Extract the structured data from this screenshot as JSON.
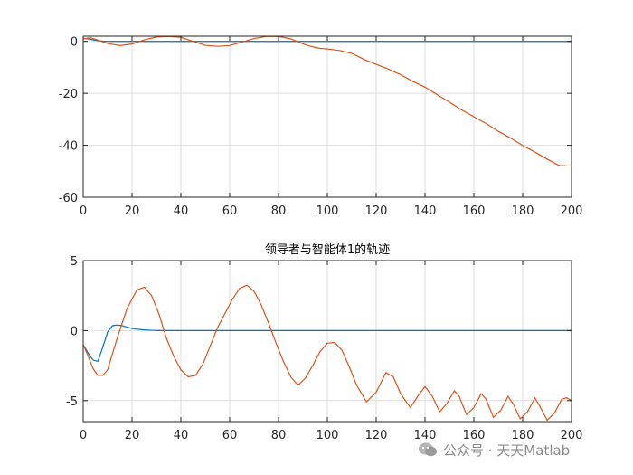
{
  "chart_data": [
    {
      "type": "line",
      "title": "",
      "xlim": [
        0,
        200
      ],
      "ylim": [
        -60,
        2
      ],
      "xticks": [
        0,
        20,
        40,
        60,
        80,
        100,
        120,
        140,
        160,
        180,
        200
      ],
      "yticks": [
        -60,
        -40,
        -20,
        0
      ],
      "grid": true,
      "series": [
        {
          "color": "#0072BD",
          "x": [
            0,
            2,
            4,
            6,
            8,
            10,
            15,
            20,
            30,
            200
          ],
          "y": [
            1.2,
            1.0,
            0.6,
            0.3,
            0.1,
            0,
            0,
            0,
            0,
            0
          ]
        },
        {
          "color": "#D95319",
          "x": [
            0,
            3,
            6,
            10,
            15,
            20,
            25,
            30,
            35,
            40,
            45,
            50,
            55,
            60,
            65,
            70,
            75,
            80,
            85,
            88,
            91,
            94,
            97,
            100,
            105,
            110,
            115,
            120,
            125,
            130,
            135,
            140,
            145,
            150,
            155,
            160,
            165,
            170,
            175,
            180,
            185,
            190,
            195,
            200
          ],
          "y": [
            1.0,
            1.4,
            0.5,
            -0.8,
            -1.6,
            -1.0,
            0.6,
            1.7,
            1.9,
            1.6,
            0,
            -1.5,
            -1.9,
            -1.6,
            -0.3,
            1.1,
            1.9,
            1.9,
            1.0,
            -0.2,
            -1.3,
            -2.1,
            -2.7,
            -2.9,
            -3.5,
            -4.6,
            -6.9,
            -8.8,
            -10.7,
            -12.8,
            -15.4,
            -17.6,
            -20.5,
            -23.4,
            -26.4,
            -29.0,
            -31.6,
            -34.6,
            -37.2,
            -40.1,
            -42.6,
            -45.3,
            -47.8,
            -48.0
          ]
        }
      ]
    },
    {
      "type": "line",
      "title": "领导者与智能体1的轨迹",
      "xlim": [
        0,
        200
      ],
      "ylim": [
        -6.5,
        5
      ],
      "xticks": [
        0,
        20,
        40,
        60,
        80,
        100,
        120,
        140,
        160,
        180,
        200
      ],
      "yticks": [
        -5,
        0,
        5
      ],
      "grid": true,
      "series": [
        {
          "color": "#0072BD",
          "x": [
            0,
            2,
            4,
            6,
            8,
            10,
            12,
            14,
            16,
            18,
            20,
            22,
            25,
            28,
            32,
            36,
            200
          ],
          "y": [
            -1.0,
            -1.6,
            -2.1,
            -2.2,
            -1.2,
            -0.1,
            0.35,
            0.4,
            0.35,
            0.25,
            0.15,
            0.1,
            0.05,
            0.02,
            0,
            0,
            0
          ]
        },
        {
          "color": "#D95319",
          "x": [
            0,
            2,
            4,
            6,
            8,
            10,
            14,
            18,
            22,
            25,
            28,
            31,
            34,
            37,
            40,
            43,
            46,
            49,
            52,
            55,
            58,
            61,
            64,
            67,
            70,
            73,
            76,
            79,
            82,
            85,
            88,
            91,
            94,
            97,
            100,
            103,
            106,
            109,
            112,
            116,
            120,
            124,
            127,
            130,
            134,
            137,
            140,
            143,
            146,
            149,
            152,
            154,
            157,
            160,
            163,
            165,
            168,
            171,
            174,
            176,
            179,
            182,
            185,
            187,
            190,
            193,
            196,
            198,
            200
          ],
          "y": [
            -1.0,
            -1.8,
            -2.7,
            -3.2,
            -3.2,
            -2.8,
            -0.5,
            1.6,
            2.9,
            3.1,
            2.5,
            1.2,
            -0.5,
            -1.8,
            -2.8,
            -3.3,
            -3.2,
            -2.4,
            -1.1,
            0.2,
            1.2,
            2.2,
            3.0,
            3.25,
            2.8,
            1.8,
            0.5,
            -0.9,
            -2.2,
            -3.3,
            -3.9,
            -3.4,
            -2.5,
            -1.5,
            -0.9,
            -0.85,
            -1.4,
            -2.6,
            -3.9,
            -5.1,
            -4.4,
            -3.0,
            -3.3,
            -4.5,
            -5.5,
            -4.7,
            -4.0,
            -4.7,
            -5.8,
            -5.2,
            -4.3,
            -4.7,
            -6.0,
            -5.5,
            -4.5,
            -4.9,
            -6.2,
            -5.7,
            -4.7,
            -5.2,
            -6.3,
            -5.8,
            -4.8,
            -5.4,
            -6.4,
            -5.9,
            -4.9,
            -4.8,
            -5.0
          ]
        }
      ]
    }
  ],
  "watermark": {
    "text": "公众号 · 天天Matlab",
    "icon": "wechat-icon"
  }
}
